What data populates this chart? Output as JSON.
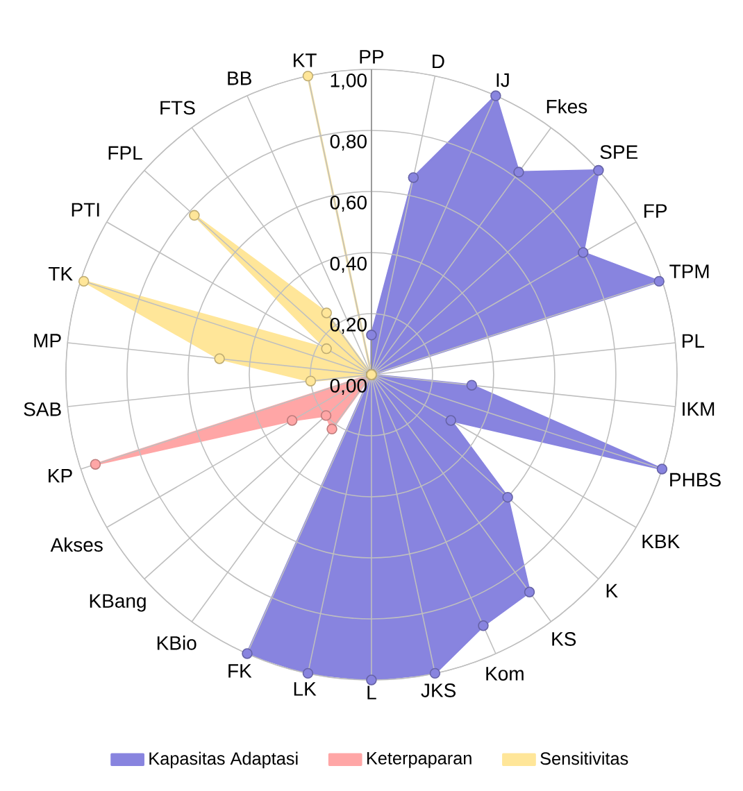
{
  "chart_data": {
    "type": "radar",
    "categories": [
      "PP",
      "D",
      "IJ",
      "Fkes",
      "SPE",
      "FP",
      "TPM",
      "PL",
      "IKM",
      "PHBS",
      "KBK",
      "K",
      "KS",
      "Kom",
      "JKS",
      "L",
      "LK",
      "FK",
      "KBio",
      "KBang",
      "Akses",
      "KP",
      "SAB",
      "MP",
      "TK",
      "PTI",
      "FPL",
      "FTS",
      "BB",
      "KT"
    ],
    "series": [
      {
        "name": "Kapasitas Adaptasi",
        "color": "#8884df",
        "values": [
          0.13,
          0.66,
          1.0,
          0.82,
          1.0,
          0.8,
          0.99,
          0,
          0.33,
          1.0,
          0.3,
          0.6,
          0.88,
          0.9,
          1.0,
          1.0,
          1.0,
          1.0,
          0,
          0,
          0,
          0,
          0,
          0,
          0,
          0,
          0,
          0,
          0,
          0
        ]
      },
      {
        "name": "Keterpaparan",
        "color": "#ffa6a6",
        "values": [
          0,
          0,
          0,
          0,
          0,
          0,
          0,
          0,
          0,
          0,
          0,
          0,
          0,
          0,
          0,
          0,
          0,
          0,
          0.22,
          0.2,
          0.3,
          0.95,
          0,
          0,
          0,
          0,
          0,
          0,
          0,
          0
        ]
      },
      {
        "name": "Sensitivitas",
        "color": "#ffe699",
        "values": [
          0,
          0,
          0,
          0,
          0,
          0,
          0,
          0,
          0,
          0,
          0,
          0,
          0,
          0,
          0,
          0,
          0,
          0,
          0,
          0,
          0,
          0,
          0.2,
          0.5,
          0.99,
          0.17,
          0.78,
          0.25,
          0,
          1.0
        ]
      }
    ],
    "ylim": [
      0,
      1
    ],
    "yticks": [
      {
        "value": 0,
        "label": "0,00"
      },
      {
        "value": 0.2,
        "label": "0,20"
      },
      {
        "value": 0.4,
        "label": "0,40"
      },
      {
        "value": 0.6,
        "label": "0,60"
      },
      {
        "value": 0.8,
        "label": "0,80"
      },
      {
        "value": 1.0,
        "label": "1,00"
      }
    ],
    "grid": true,
    "legend": "bottom",
    "marker": "circle"
  }
}
